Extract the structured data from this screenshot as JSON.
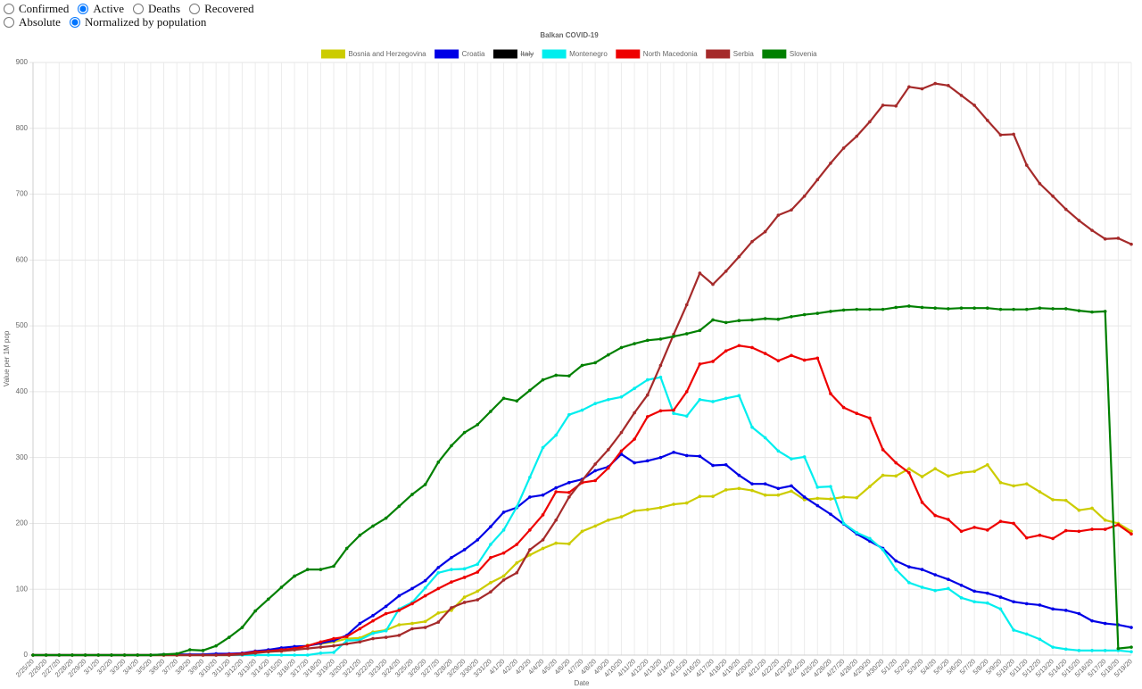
{
  "controls": {
    "metric": {
      "options": [
        "Confirmed",
        "Active",
        "Deaths",
        "Recovered"
      ],
      "selected": 1
    },
    "scale": {
      "options": [
        "Absolute",
        "Normalized by population"
      ],
      "selected": 1
    }
  },
  "chart_data": {
    "type": "line",
    "title": "Balkan COVID-19",
    "x_label": "Date",
    "y_label": "Value per 1M pop",
    "ylim": [
      0,
      900
    ],
    "yticks": [
      0,
      100,
      200,
      300,
      400,
      500,
      600,
      700,
      800,
      900
    ],
    "grid": true,
    "legend": "top",
    "categories": [
      "2/25/20",
      "2/26/20",
      "2/27/20",
      "2/28/20",
      "2/29/20",
      "3/1/20",
      "3/2/20",
      "3/3/20",
      "3/4/20",
      "3/5/20",
      "3/6/20",
      "3/7/20",
      "3/8/20",
      "3/9/20",
      "3/10/20",
      "3/11/20",
      "3/12/20",
      "3/13/20",
      "3/14/20",
      "3/15/20",
      "3/16/20",
      "3/17/20",
      "3/18/20",
      "3/19/20",
      "3/20/20",
      "3/21/20",
      "3/22/20",
      "3/23/20",
      "3/24/20",
      "3/25/20",
      "3/26/20",
      "3/27/20",
      "3/28/20",
      "3/29/20",
      "3/30/20",
      "3/31/20",
      "4/1/20",
      "4/2/20",
      "4/3/20",
      "4/4/20",
      "4/5/20",
      "4/6/20",
      "4/7/20",
      "4/8/20",
      "4/9/20",
      "4/10/20",
      "4/11/20",
      "4/12/20",
      "4/13/20",
      "4/14/20",
      "4/15/20",
      "4/16/20",
      "4/17/20",
      "4/18/20",
      "4/19/20",
      "4/20/20",
      "4/21/20",
      "4/22/20",
      "4/23/20",
      "4/24/20",
      "4/25/20",
      "4/26/20",
      "4/27/20",
      "4/28/20",
      "4/29/20",
      "4/30/20",
      "5/1/20",
      "5/2/20",
      "5/3/20",
      "5/4/20",
      "5/5/20",
      "5/6/20",
      "5/7/20",
      "5/8/20",
      "5/9/20",
      "5/10/20",
      "5/11/20",
      "5/12/20",
      "5/13/20",
      "5/14/20",
      "5/15/20",
      "5/16/20",
      "5/17/20",
      "5/18/20",
      "5/19/20"
    ],
    "series": [
      {
        "name": "Bosnia and Herzegovina",
        "color": "#cccc00",
        "values": [
          0,
          0,
          0,
          0,
          0,
          0,
          0,
          0,
          0,
          0,
          0,
          0,
          0,
          0,
          0,
          0,
          3,
          4,
          5,
          6,
          8,
          15,
          17,
          20,
          25,
          26,
          35,
          38,
          46,
          48,
          51,
          64,
          68,
          88,
          97,
          110,
          120,
          140,
          152,
          162,
          170,
          169,
          188,
          196,
          205,
          210,
          219,
          221,
          224,
          229,
          231,
          241,
          241,
          251,
          253,
          250,
          243,
          243,
          249,
          236,
          238,
          237,
          240,
          239,
          256,
          273,
          272,
          283,
          271,
          283,
          272,
          277,
          279,
          289,
          262,
          257,
          260,
          248,
          236,
          235,
          220,
          223,
          205,
          200,
          188
        ]
      },
      {
        "name": "Croatia",
        "color": "#0000e6",
        "values": [
          0,
          0,
          0,
          0,
          0,
          0,
          0,
          0,
          0,
          0,
          1,
          1,
          1,
          1,
          2,
          2,
          3,
          6,
          8,
          11,
          13,
          14,
          18,
          22,
          30,
          48,
          60,
          74,
          90,
          101,
          113,
          133,
          148,
          160,
          175,
          195,
          217,
          224,
          240,
          243,
          254,
          262,
          267,
          280,
          286,
          305,
          292,
          295,
          300,
          308,
          303,
          302,
          288,
          289,
          273,
          260,
          260,
          253,
          257,
          240,
          227,
          214,
          199,
          184,
          173,
          162,
          143,
          134,
          130,
          122,
          115,
          106,
          97,
          94,
          88,
          81,
          78,
          76,
          70,
          68,
          63,
          52,
          48,
          46,
          42
        ]
      },
      {
        "name": "Italy",
        "color": "#000000",
        "hidden": true,
        "values": [
          null,
          null,
          null,
          null,
          null,
          null,
          null,
          null,
          null,
          null,
          null,
          null,
          null,
          null,
          null,
          null,
          null,
          null,
          null,
          null,
          null,
          null,
          null,
          null,
          null,
          null,
          null,
          null,
          null,
          null,
          null,
          null,
          null,
          null,
          null,
          null,
          null,
          null,
          null,
          null,
          null,
          null,
          null,
          null,
          null,
          null,
          null,
          null,
          null,
          null,
          null,
          null,
          null,
          null,
          null,
          null,
          null,
          null,
          null,
          null,
          null,
          null,
          null,
          null,
          null,
          null,
          null,
          null,
          null,
          null,
          null,
          null,
          null,
          null,
          null,
          null,
          null,
          null,
          null,
          null,
          null,
          null,
          null,
          null,
          null
        ]
      },
      {
        "name": "Montenegro",
        "color": "#00eeee",
        "values": [
          0,
          0,
          0,
          0,
          0,
          0,
          0,
          0,
          0,
          0,
          0,
          0,
          0,
          0,
          0,
          0,
          0,
          0,
          0,
          0,
          0,
          0,
          3,
          4,
          22,
          23,
          33,
          37,
          70,
          80,
          102,
          125,
          130,
          131,
          138,
          168,
          190,
          225,
          270,
          315,
          334,
          365,
          372,
          382,
          388,
          392,
          405,
          418,
          422,
          367,
          363,
          388,
          385,
          390,
          394,
          346,
          330,
          310,
          298,
          301,
          255,
          256,
          200,
          186,
          177,
          160,
          130,
          110,
          103,
          98,
          101,
          87,
          81,
          79,
          70,
          38,
          32,
          24,
          12,
          9,
          7,
          7,
          7,
          7,
          5
        ]
      },
      {
        "name": "North Macedonia",
        "color": "#ee0000",
        "values": [
          0,
          0,
          0,
          0,
          0,
          0,
          0,
          0,
          0,
          0,
          0,
          0,
          0,
          0,
          0,
          1,
          2,
          5,
          6,
          8,
          10,
          14,
          20,
          25,
          28,
          40,
          52,
          63,
          68,
          78,
          90,
          101,
          111,
          118,
          126,
          148,
          155,
          168,
          190,
          213,
          248,
          247,
          262,
          265,
          284,
          310,
          328,
          362,
          371,
          372,
          400,
          442,
          446,
          462,
          470,
          467,
          458,
          447,
          455,
          448,
          451,
          397,
          376,
          367,
          360,
          312,
          292,
          277,
          232,
          212,
          206,
          188,
          194,
          190,
          203,
          200,
          178,
          182,
          177,
          189,
          188,
          191,
          191,
          198,
          184
        ]
      },
      {
        "name": "Serbia",
        "color": "#a52a2a",
        "values": [
          0,
          0,
          0,
          0,
          0,
          0,
          0,
          0,
          0,
          0,
          0,
          0,
          0,
          0,
          0,
          0,
          1,
          3,
          5,
          6,
          8,
          10,
          12,
          14,
          17,
          20,
          25,
          27,
          30,
          40,
          42,
          50,
          72,
          80,
          84,
          96,
          114,
          125,
          160,
          175,
          205,
          240,
          265,
          290,
          312,
          338,
          368,
          395,
          440,
          487,
          532,
          580,
          563,
          583,
          605,
          628,
          643,
          668,
          676,
          697,
          722,
          747,
          770,
          788,
          810,
          835,
          834,
          863,
          860,
          868,
          865,
          850,
          835,
          812,
          790,
          791,
          744,
          716,
          697,
          677,
          660,
          645,
          632,
          633,
          624
        ]
      },
      {
        "name": "Slovenia",
        "color": "#008000",
        "values": [
          0,
          0,
          0,
          0,
          0,
          0,
          0,
          0,
          0,
          0,
          1,
          2,
          8,
          7,
          14,
          27,
          42,
          67,
          85,
          103,
          120,
          130,
          130,
          135,
          162,
          182,
          196,
          208,
          226,
          244,
          259,
          293,
          318,
          338,
          350,
          370,
          390,
          386,
          402,
          418,
          425,
          424,
          440,
          444,
          456,
          467,
          473,
          478,
          480,
          484,
          488,
          493,
          509,
          505,
          508,
          509,
          511,
          510,
          514,
          517,
          519,
          522,
          524,
          525,
          525,
          525,
          528,
          530,
          528,
          527,
          526,
          527,
          527,
          527,
          525,
          525,
          525,
          527,
          526,
          526,
          523,
          521,
          522,
          10,
          12
        ]
      }
    ]
  }
}
